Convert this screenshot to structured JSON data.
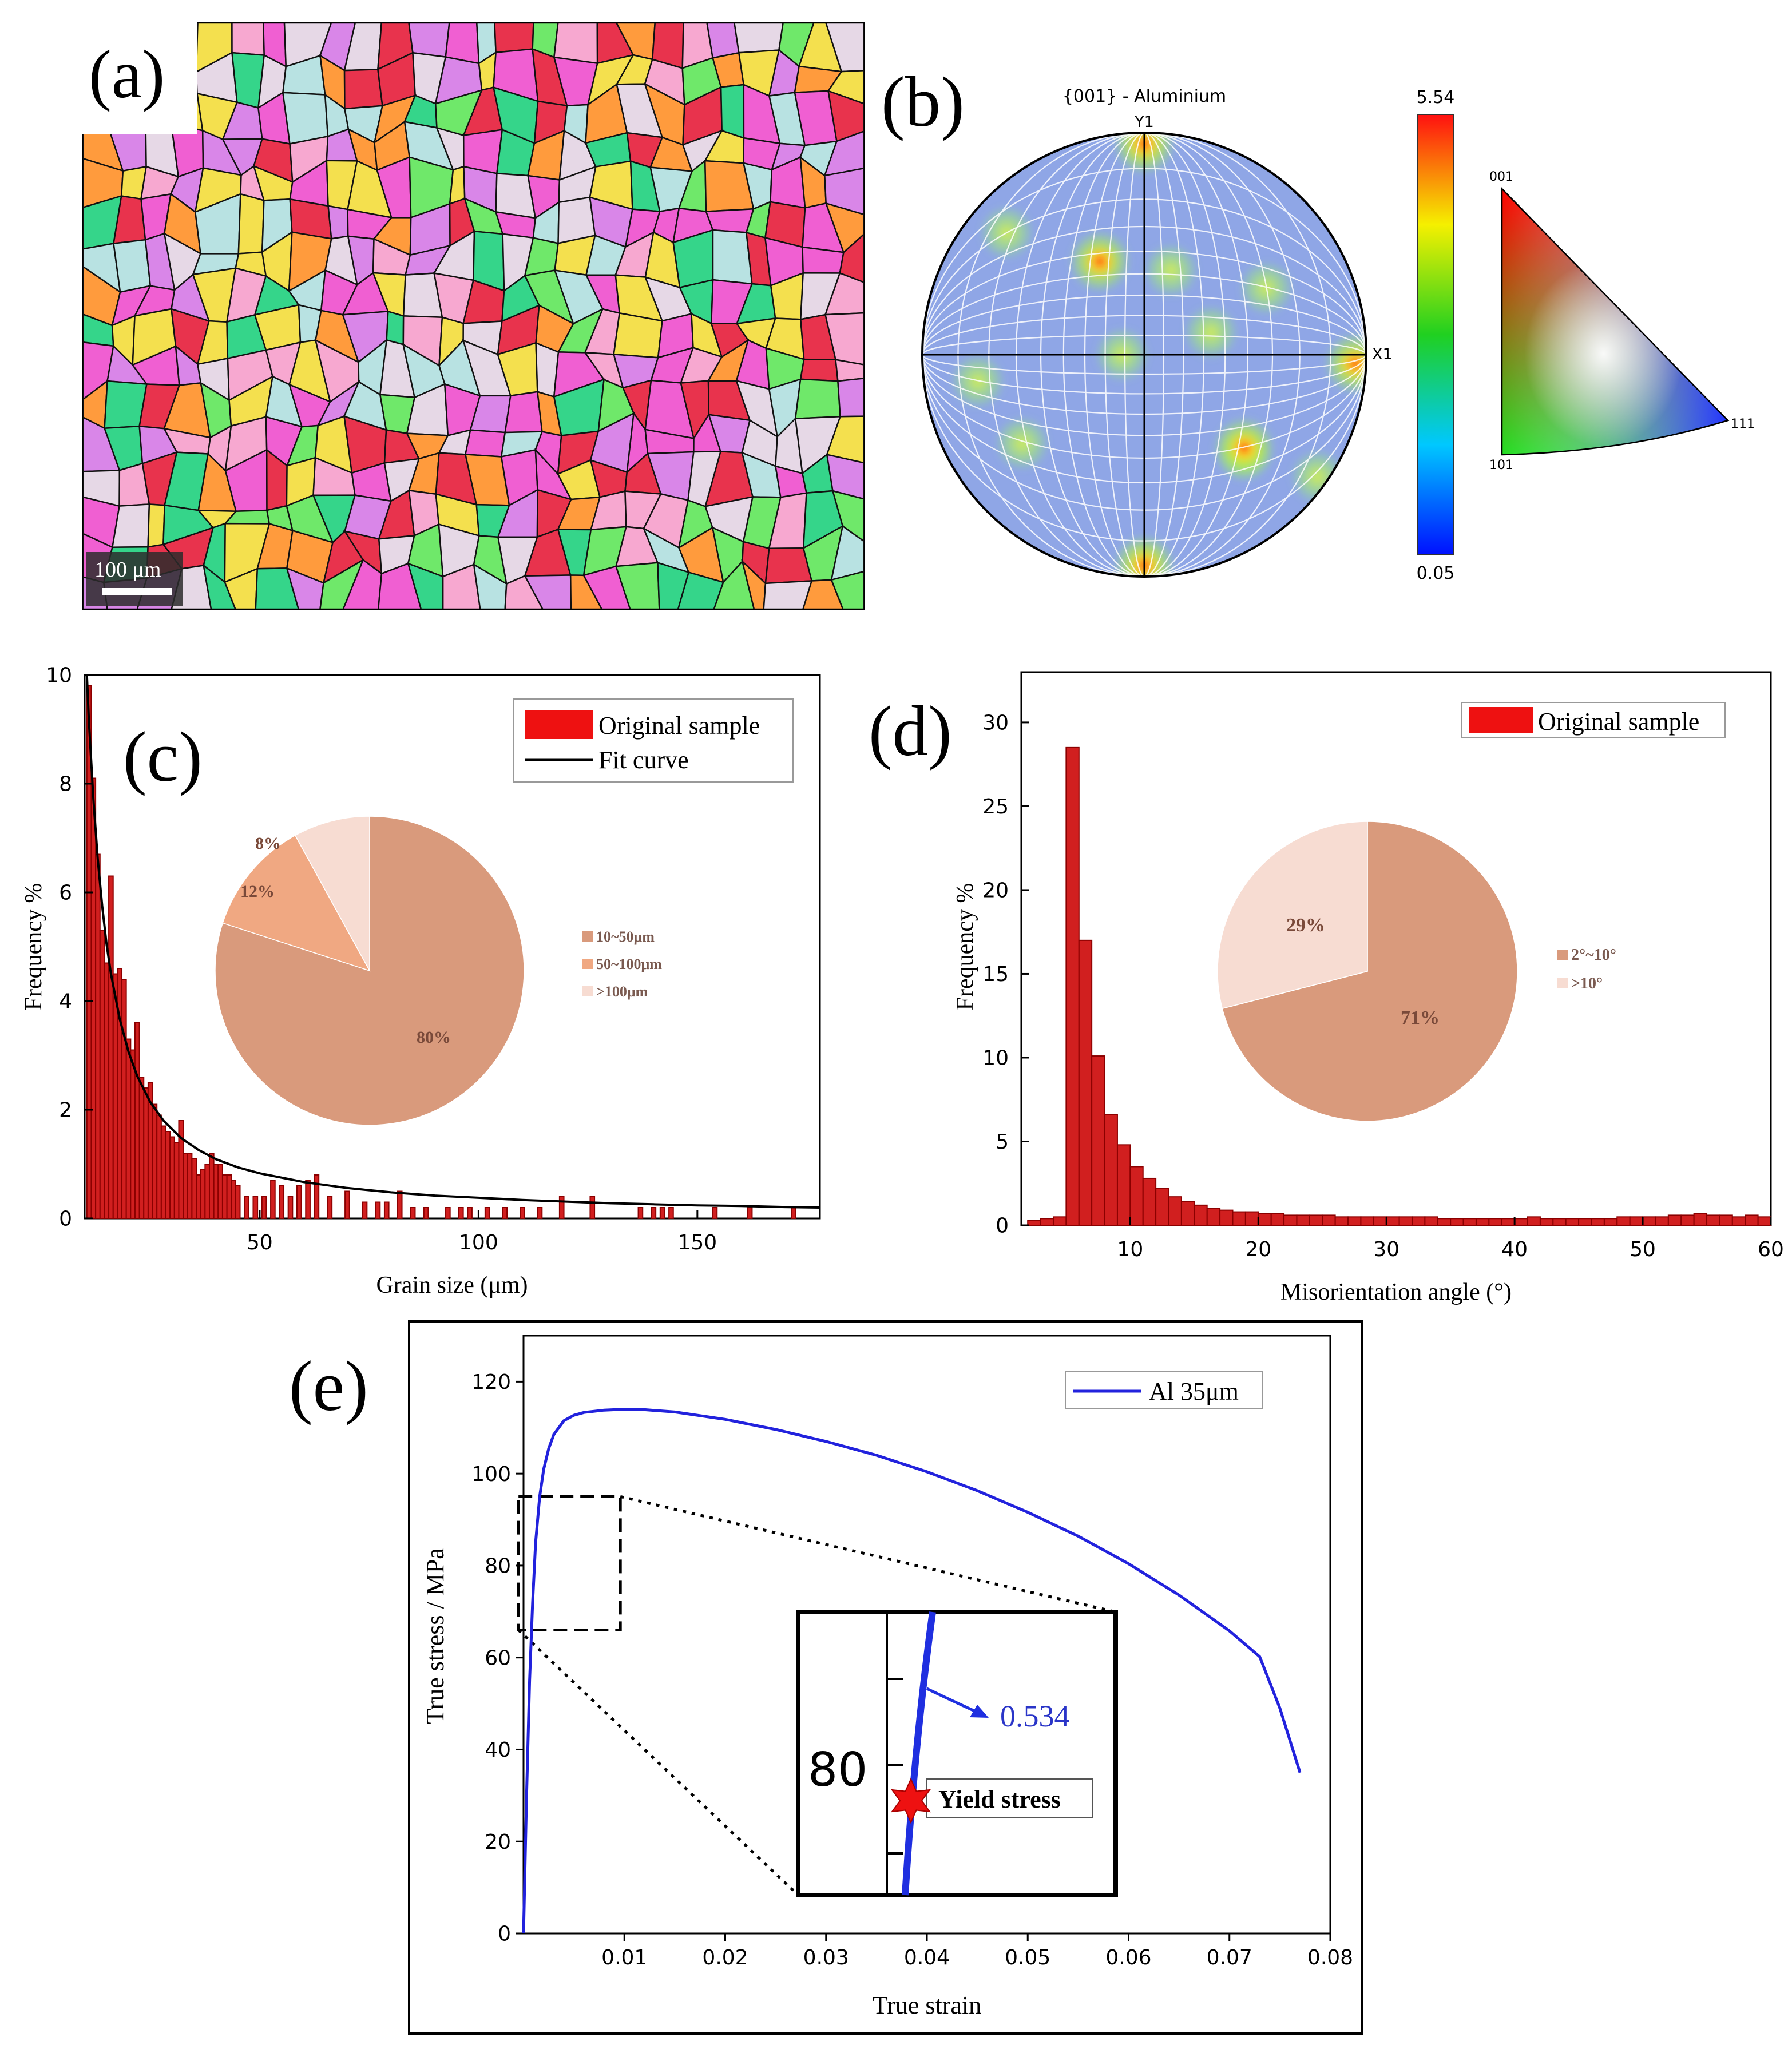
{
  "colors": {
    "bar_red": "#d11f1f",
    "bar_dark": "#8b0000",
    "pie_main": "#d99a7c",
    "pie_mid": "#f0a882",
    "pie_light": "#f7dcd2",
    "line_blue": "#2222dd",
    "star_red": "#ee1111",
    "axis": "#000000"
  },
  "panels": {
    "a": {
      "label": "(a)",
      "scale_bar": "100 μm",
      "description_colors": [
        "#e8334d",
        "#f05fd2",
        "#d986e8",
        "#6fe86a",
        "#35d58a",
        "#b8e2e2",
        "#f7a8d0",
        "#f4e04e",
        "#ff9b3d",
        "#e6d8e6"
      ]
    },
    "b": {
      "label": "(b)",
      "title": "{001} - Aluminium",
      "y_axis": "Y1",
      "x_axis": "X1",
      "colorbar_max": "5.54",
      "colorbar_min": "0.05",
      "triangle_labels": [
        "001",
        "101",
        "111"
      ],
      "hotspots": [
        {
          "x": 0.0,
          "y": 0.95,
          "level": 0.6
        },
        {
          "x": -0.2,
          "y": 0.42,
          "level": 0.7
        },
        {
          "x": 0.12,
          "y": 0.38,
          "level": 0.4
        },
        {
          "x": -0.62,
          "y": 0.55,
          "level": 0.3
        },
        {
          "x": -0.1,
          "y": 0.0,
          "level": 0.35
        },
        {
          "x": 0.95,
          "y": -0.04,
          "level": 0.9
        },
        {
          "x": -0.75,
          "y": -0.12,
          "level": 0.35
        },
        {
          "x": 0.45,
          "y": -0.45,
          "level": 0.4
        },
        {
          "x": 0.45,
          "y": -0.42,
          "level": 0.6
        },
        {
          "x": 0.0,
          "y": -0.95,
          "level": 0.6
        },
        {
          "x": 0.78,
          "y": -0.55,
          "level": 0.35
        },
        {
          "x": -0.55,
          "y": -0.4,
          "level": 0.3
        },
        {
          "x": 0.3,
          "y": 0.1,
          "level": 0.3
        },
        {
          "x": 0.55,
          "y": 0.3,
          "level": 0.3
        }
      ]
    },
    "c": {
      "label": "(c)",
      "legend": [
        "Original sample",
        "Fit curve"
      ]
    },
    "d": {
      "label": "(d)",
      "legend": [
        "Original sample"
      ]
    },
    "e": {
      "label": "(e)",
      "legend": [
        "Al 35μm"
      ],
      "inset_tick": "80",
      "inset_value": "0.534",
      "inset_annotation": "Yield stress"
    }
  },
  "chart_data": [
    {
      "id": "c",
      "type": "bar",
      "xlabel": "Grain size (μm)",
      "ylabel": "Frequency %",
      "xlim": [
        10,
        178
      ],
      "ylim": [
        0,
        10
      ],
      "xticks": [
        50,
        100,
        150
      ],
      "yticks": [
        0,
        2,
        4,
        6,
        8,
        10
      ],
      "bar_width": 1.0,
      "series": [
        {
          "name": "Original sample",
          "x": [
            11,
            12,
            13,
            14,
            15,
            16,
            17,
            18,
            19,
            20,
            21,
            22,
            23,
            24,
            25,
            26,
            27,
            28,
            29,
            30,
            31,
            32,
            33,
            34,
            35,
            36,
            37,
            38,
            39,
            40,
            41,
            42,
            43,
            44,
            45,
            47,
            49,
            51,
            53,
            55,
            57,
            59,
            61,
            63,
            66,
            70,
            74,
            77,
            79,
            82,
            85,
            88,
            93,
            96,
            98,
            102,
            106,
            110,
            114,
            119,
            126,
            137,
            140,
            142,
            144,
            154,
            162,
            172
          ],
          "values": [
            9.8,
            8.1,
            6.7,
            5.3,
            4.7,
            6.3,
            4.5,
            4.6,
            4.4,
            3.3,
            3.1,
            3.6,
            2.6,
            2.4,
            2.5,
            2.1,
            1.9,
            1.7,
            1.6,
            1.5,
            1.4,
            1.8,
            1.2,
            1.2,
            1.1,
            0.8,
            0.9,
            1.0,
            1.2,
            1.0,
            1.0,
            0.8,
            0.8,
            0.7,
            0.6,
            0.4,
            0.4,
            0.4,
            0.7,
            0.6,
            0.4,
            0.6,
            0.7,
            0.8,
            0.4,
            0.5,
            0.3,
            0.3,
            0.3,
            0.5,
            0.2,
            0.2,
            0.2,
            0.2,
            0.2,
            0.2,
            0.2,
            0.2,
            0.2,
            0.4,
            0.4,
            0.2,
            0.2,
            0.2,
            0.2,
            0.2,
            0.2,
            0.2
          ]
        },
        {
          "name": "Fit curve",
          "type": "line",
          "x": [
            10.5,
            11,
            12,
            13,
            14,
            15,
            16,
            18,
            20,
            22,
            25,
            28,
            32,
            36,
            40,
            45,
            50,
            60,
            70,
            80,
            90,
            100,
            110,
            120,
            130,
            140,
            150,
            160,
            170,
            178
          ],
          "values": [
            10.0,
            9.1,
            7.7,
            6.6,
            5.75,
            5.05,
            4.5,
            3.67,
            3.07,
            2.62,
            2.14,
            1.8,
            1.48,
            1.26,
            1.09,
            0.94,
            0.83,
            0.67,
            0.56,
            0.48,
            0.42,
            0.38,
            0.34,
            0.31,
            0.28,
            0.26,
            0.24,
            0.23,
            0.21,
            0.2
          ]
        }
      ],
      "inset_pie": {
        "type": "pie",
        "slices": [
          {
            "label": "10~50μm",
            "value": 80,
            "text": "80%"
          },
          {
            "label": "50~100μm",
            "value": 12,
            "text": "12%"
          },
          {
            "label": ">100μm",
            "value": 8,
            "text": "8%"
          }
        ]
      }
    },
    {
      "id": "d",
      "type": "bar",
      "xlabel": "Misorientation angle (°)",
      "ylabel": "Frequency %",
      "xlim": [
        1.5,
        60
      ],
      "ylim": [
        0,
        33
      ],
      "xticks": [
        10,
        20,
        30,
        40,
        50,
        60
      ],
      "yticks": [
        0,
        5,
        10,
        15,
        20,
        25,
        30
      ],
      "bin_width": 1.0,
      "series": [
        {
          "name": "Original sample",
          "x": [
            2.5,
            3.5,
            4.5,
            5.5,
            6.5,
            7.5,
            8.5,
            9.5,
            10.5,
            11.5,
            12.5,
            13.5,
            14.5,
            15.5,
            16.5,
            17.5,
            18.5,
            19.5,
            20.5,
            21.5,
            22.5,
            23.5,
            24.5,
            25.5,
            26.5,
            27.5,
            28.5,
            29.5,
            30.5,
            31.5,
            32.5,
            33.5,
            34.5,
            35.5,
            36.5,
            37.5,
            38.5,
            39.5,
            40.5,
            41.5,
            42.5,
            43.5,
            44.5,
            45.5,
            46.5,
            47.5,
            48.5,
            49.5,
            50.5,
            51.5,
            52.5,
            53.5,
            54.5,
            55.5,
            56.5,
            57.5,
            58.5,
            59.5
          ],
          "values": [
            0.3,
            0.4,
            0.5,
            28.5,
            17.0,
            10.1,
            6.6,
            4.8,
            3.5,
            2.8,
            2.2,
            1.7,
            1.4,
            1.2,
            1.0,
            0.9,
            0.8,
            0.8,
            0.7,
            0.7,
            0.6,
            0.6,
            0.6,
            0.6,
            0.5,
            0.5,
            0.5,
            0.5,
            0.5,
            0.5,
            0.5,
            0.5,
            0.4,
            0.4,
            0.4,
            0.4,
            0.4,
            0.4,
            0.4,
            0.5,
            0.4,
            0.4,
            0.4,
            0.4,
            0.4,
            0.4,
            0.5,
            0.5,
            0.5,
            0.5,
            0.6,
            0.6,
            0.7,
            0.6,
            0.6,
            0.5,
            0.6,
            0.5
          ]
        }
      ],
      "inset_pie": {
        "type": "pie",
        "slices": [
          {
            "label": "2°~10°",
            "value": 71,
            "text": "71%"
          },
          {
            "label": ">10°",
            "value": 29,
            "text": "29%"
          }
        ]
      }
    },
    {
      "id": "e",
      "type": "line",
      "xlabel": "True strain",
      "ylabel": "True stress / MPa",
      "xlim": [
        0,
        0.08
      ],
      "ylim": [
        0,
        130
      ],
      "xticks": [
        0.01,
        0.02,
        0.03,
        0.04,
        0.05,
        0.06,
        0.07,
        0.08
      ],
      "yticks": [
        0,
        20,
        40,
        60,
        80,
        100,
        120
      ],
      "series": [
        {
          "name": "Al 35μm",
          "x": [
            0.0,
            0.0003,
            0.0006,
            0.0009,
            0.0012,
            0.0016,
            0.002,
            0.0025,
            0.003,
            0.004,
            0.005,
            0.006,
            0.008,
            0.01,
            0.012,
            0.015,
            0.02,
            0.025,
            0.03,
            0.035,
            0.04,
            0.045,
            0.05,
            0.055,
            0.06,
            0.065,
            0.07,
            0.073,
            0.075,
            0.077
          ],
          "values": [
            0.0,
            30.0,
            55.0,
            72.0,
            85.0,
            95.0,
            101.0,
            105.5,
            108.5,
            111.5,
            112.7,
            113.3,
            113.8,
            114.0,
            113.9,
            113.4,
            111.8,
            109.6,
            107.0,
            104.0,
            100.4,
            96.3,
            91.6,
            86.4,
            80.4,
            73.6,
            65.8,
            60.2,
            49.0,
            35.0
          ]
        }
      ],
      "zoom_box": {
        "x": [
          -0.0005,
          0.0096
        ],
        "y": [
          66,
          95
        ]
      }
    }
  ]
}
